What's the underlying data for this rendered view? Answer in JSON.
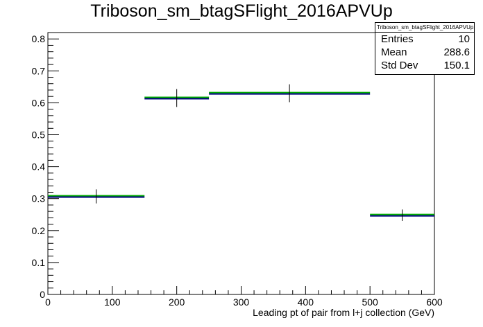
{
  "title": "Triboson_sm_btagSFlight_2016APVUp",
  "stats": {
    "title": "Triboson_sm_btagSFlight_2016APVUp",
    "rows": [
      {
        "label": "Entries",
        "value": "10"
      },
      {
        "label": "Mean",
        "value": "288.6"
      },
      {
        "label": "Std Dev",
        "value": "150.1"
      }
    ]
  },
  "chart_data": {
    "type": "histogram",
    "title": "Triboson_sm_btagSFlight_2016APVUp",
    "xlabel": "Leading pt of pair from l+j collection (GeV)",
    "ylabel": "",
    "xlim": [
      0,
      600
    ],
    "ylim": [
      0,
      0.82
    ],
    "xticks": [
      0,
      100,
      200,
      300,
      400,
      500,
      600
    ],
    "xtick_labels": [
      "0",
      "100",
      "200",
      "300",
      "400",
      "500",
      "600"
    ],
    "yticks": [
      0,
      0.1,
      0.2,
      0.3,
      0.4,
      0.5,
      0.6,
      0.7,
      0.8
    ],
    "ytick_labels": [
      "0",
      "0.1",
      "0.2",
      "0.3",
      "0.4",
      "0.5",
      "0.6",
      "0.7",
      "0.8"
    ],
    "grid": false,
    "bins": [
      {
        "x_low": 0,
        "x_high": 150,
        "value": 0.307,
        "error": 0.022
      },
      {
        "x_low": 150,
        "x_high": 250,
        "value": 0.615,
        "error": 0.028
      },
      {
        "x_low": 250,
        "x_high": 500,
        "value": 0.63,
        "error": 0.028
      },
      {
        "x_low": 500,
        "x_high": 600,
        "value": 0.248,
        "error": 0.018
      }
    ],
    "colors": {
      "fill_line": "#00aa00",
      "hist_line": "#000080",
      "error": "#000000",
      "axis": "#000000"
    }
  }
}
